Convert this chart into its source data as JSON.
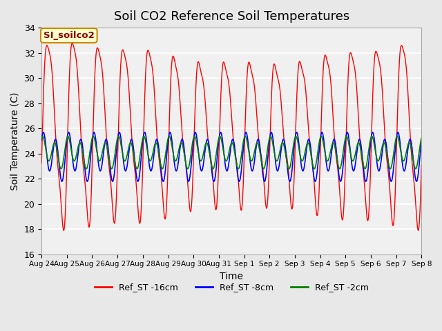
{
  "title": "Soil CO2 Reference Soil Temperatures",
  "xlabel": "Time",
  "ylabel": "Soil Temperature (C)",
  "ylim": [
    16,
    34
  ],
  "bg_color": "#e8e8e8",
  "plot_bg": "#f0f0f0",
  "grid_color": "white",
  "annotation_text": "SI_soilco2",
  "annotation_bg": "#ffffcc",
  "annotation_border": "#cc8800",
  "annotation_text_color": "#880000",
  "tick_labels": [
    "Aug 24",
    "Aug 25",
    "Aug 26",
    "Aug 27",
    "Aug 28",
    "Aug 29",
    "Aug 30",
    "Aug 31",
    "Sep 1",
    "Sep 2",
    "Sep 3",
    "Sep 4",
    "Sep 5",
    "Sep 6",
    "Sep 7",
    "Sep 8"
  ],
  "legend": [
    {
      "label": "Ref_ST -16cm",
      "color": "red"
    },
    {
      "label": "Ref_ST -8cm",
      "color": "blue"
    },
    {
      "label": "Ref_ST -2cm",
      "color": "green"
    }
  ],
  "duration_days": 15,
  "n_points": 3000,
  "red_mean": 26.0,
  "blue_mean": 23.8,
  "green_mean": 24.1
}
